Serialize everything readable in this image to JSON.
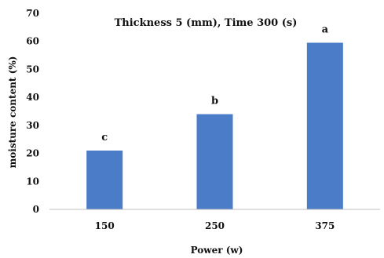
{
  "chart_data": {
    "type": "bar",
    "title": "Thickness 5 (mm), Time 300 (s)",
    "xlabel": "Power (w)",
    "ylabel": "moisture content  (%)",
    "categories": [
      "150",
      "250",
      "375"
    ],
    "values": [
      21,
      34,
      59.5
    ],
    "data_labels": [
      "c",
      "b",
      "a"
    ],
    "ylim": [
      0,
      70
    ],
    "yticks": [
      0,
      10,
      20,
      30,
      40,
      50,
      60,
      70
    ],
    "yticks_text": [
      "0",
      "10",
      "20",
      "30",
      "40",
      "50",
      "60",
      "70"
    ],
    "grid": false,
    "legend": "none",
    "bar_color": "#4a7cc8"
  }
}
